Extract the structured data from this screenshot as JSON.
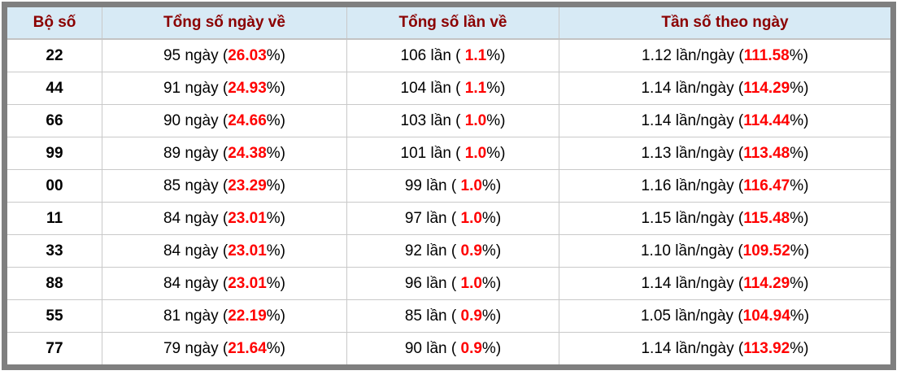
{
  "colors": {
    "frame_gray": "#7f7f7f",
    "header_bg": "#d7eaf5",
    "header_text": "#8b0000",
    "grid_line": "#c9c9c9",
    "highlight_red": "#ff0000",
    "body_text": "#000000"
  },
  "table": {
    "headers": [
      "Bộ số",
      "Tổng số ngày về",
      "Tổng số lần về",
      "Tần số theo ngày"
    ],
    "rows": [
      {
        "pair": "22",
        "days_prefix": "95 ngày (",
        "days_value": "26.03",
        "days_suffix": "%)",
        "times_prefix": "106 lần ( ",
        "times_value": "1.1",
        "times_suffix": "%)",
        "freq_prefix": "1.12 lần/ngày (",
        "freq_value": "111.58",
        "freq_suffix": "%)"
      },
      {
        "pair": "44",
        "days_prefix": "91 ngày (",
        "days_value": "24.93",
        "days_suffix": "%)",
        "times_prefix": "104 lần ( ",
        "times_value": "1.1",
        "times_suffix": "%)",
        "freq_prefix": "1.14 lần/ngày (",
        "freq_value": "114.29",
        "freq_suffix": "%)"
      },
      {
        "pair": "66",
        "days_prefix": "90 ngày (",
        "days_value": "24.66",
        "days_suffix": "%)",
        "times_prefix": "103 lần ( ",
        "times_value": "1.0",
        "times_suffix": "%)",
        "freq_prefix": "1.14 lần/ngày (",
        "freq_value": "114.44",
        "freq_suffix": "%)"
      },
      {
        "pair": "99",
        "days_prefix": "89 ngày (",
        "days_value": "24.38",
        "days_suffix": "%)",
        "times_prefix": "101 lần ( ",
        "times_value": "1.0",
        "times_suffix": "%)",
        "freq_prefix": "1.13 lần/ngày (",
        "freq_value": "113.48",
        "freq_suffix": "%)"
      },
      {
        "pair": "00",
        "days_prefix": "85 ngày (",
        "days_value": "23.29",
        "days_suffix": "%)",
        "times_prefix": "99 lần ( ",
        "times_value": "1.0",
        "times_suffix": "%)",
        "freq_prefix": "1.16 lần/ngày (",
        "freq_value": "116.47",
        "freq_suffix": "%)"
      },
      {
        "pair": "11",
        "days_prefix": "84 ngày (",
        "days_value": "23.01",
        "days_suffix": "%)",
        "times_prefix": "97 lần ( ",
        "times_value": "1.0",
        "times_suffix": "%)",
        "freq_prefix": "1.15 lần/ngày (",
        "freq_value": "115.48",
        "freq_suffix": "%)"
      },
      {
        "pair": "33",
        "days_prefix": "84 ngày (",
        "days_value": "23.01",
        "days_suffix": "%)",
        "times_prefix": "92 lần ( ",
        "times_value": "0.9",
        "times_suffix": "%)",
        "freq_prefix": "1.10 lần/ngày (",
        "freq_value": "109.52",
        "freq_suffix": "%)"
      },
      {
        "pair": "88",
        "days_prefix": "84 ngày (",
        "days_value": "23.01",
        "days_suffix": "%)",
        "times_prefix": "96 lần ( ",
        "times_value": "1.0",
        "times_suffix": "%)",
        "freq_prefix": "1.14 lần/ngày (",
        "freq_value": "114.29",
        "freq_suffix": "%)"
      },
      {
        "pair": "55",
        "days_prefix": "81 ngày (",
        "days_value": "22.19",
        "days_suffix": "%)",
        "times_prefix": "85 lần ( ",
        "times_value": "0.9",
        "times_suffix": "%)",
        "freq_prefix": "1.05 lần/ngày (",
        "freq_value": "104.94",
        "freq_suffix": "%)"
      },
      {
        "pair": "77",
        "days_prefix": "79 ngày (",
        "days_value": "21.64",
        "days_suffix": "%)",
        "times_prefix": "90 lần ( ",
        "times_value": "0.9",
        "times_suffix": "%)",
        "freq_prefix": "1.14 lần/ngày (",
        "freq_value": "113.92",
        "freq_suffix": "%)"
      }
    ]
  },
  "chart_data": {
    "type": "table",
    "columns": [
      "Bộ số",
      "Tổng số ngày về",
      "Tổng số lần về",
      "Tần số theo ngày"
    ],
    "rows": [
      [
        "22",
        "95 ngày (26.03%)",
        "106 lần ( 1.1%)",
        "1.12 lần/ngày (111.58%)"
      ],
      [
        "44",
        "91 ngày (24.93%)",
        "104 lần ( 1.1%)",
        "1.14 lần/ngày (114.29%)"
      ],
      [
        "66",
        "90 ngày (24.66%)",
        "103 lần ( 1.0%)",
        "1.14 lần/ngày (114.44%)"
      ],
      [
        "99",
        "89 ngày (24.38%)",
        "101 lần ( 1.0%)",
        "1.13 lần/ngày (113.48%)"
      ],
      [
        "00",
        "85 ngày (23.29%)",
        "99 lần ( 1.0%)",
        "1.16 lần/ngày (116.47%)"
      ],
      [
        "11",
        "84 ngày (23.01%)",
        "97 lần ( 1.0%)",
        "1.15 lần/ngày (115.48%)"
      ],
      [
        "33",
        "84 ngày (23.01%)",
        "92 lần ( 0.9%)",
        "1.10 lần/ngày (109.52%)"
      ],
      [
        "88",
        "84 ngày (23.01%)",
        "96 lần ( 1.0%)",
        "1.14 lần/ngày (114.29%)"
      ],
      [
        "55",
        "81 ngày (22.19%)",
        "85 lần ( 0.9%)",
        "1.05 lần/ngày (104.94%)"
      ],
      [
        "77",
        "79 ngày (21.64%)",
        "90 lần ( 0.9%)",
        "1.14 lần/ngày (113.92%)"
      ]
    ]
  }
}
